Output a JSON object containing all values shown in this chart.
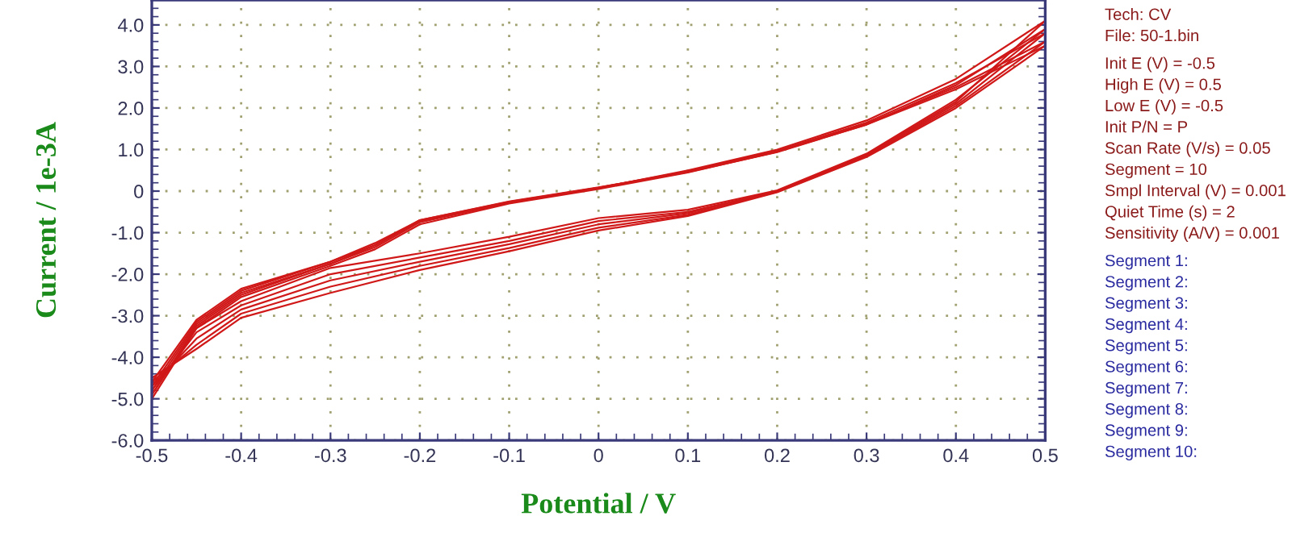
{
  "chart_data": {
    "type": "line",
    "xlabel": "Potential / V",
    "ylabel": "Current / 1e-3A",
    "xlim": [
      -0.5,
      0.5
    ],
    "ylim": [
      -6.0,
      4.6
    ],
    "xticks": [
      -0.5,
      -0.4,
      -0.3,
      -0.2,
      -0.1,
      0,
      0.1,
      0.2,
      0.3,
      0.4,
      0.5
    ],
    "yticks": [
      {
        "value": -6,
        "label": "-6.0"
      },
      {
        "value": -5,
        "label": "-5.0"
      },
      {
        "value": -4,
        "label": "-4.0"
      },
      {
        "value": -3,
        "label": "-3.0"
      },
      {
        "value": -2,
        "label": "-2.0"
      },
      {
        "value": -1,
        "label": "-1.0"
      },
      0,
      {
        "value": 1,
        "label": "1.0"
      },
      {
        "value": 2,
        "label": "2.0"
      },
      {
        "value": 3,
        "label": "3.0"
      },
      {
        "value": 4,
        "label": "4.0"
      }
    ],
    "grid": true,
    "legend": false,
    "marker": "none",
    "line_style": "solid",
    "series": [
      {
        "color": "#d01818",
        "x": [
          -0.5,
          -0.45,
          -0.4,
          -0.3,
          -0.25,
          -0.2,
          -0.1,
          0,
          0.1,
          0.2,
          0.3,
          0.4,
          0.5
        ],
        "values": [
          -5.0,
          -3.3,
          -2.55,
          -1.8,
          -1.4,
          -0.8,
          -0.3,
          0.05,
          0.45,
          0.95,
          1.6,
          2.55,
          3.9
        ]
      },
      {
        "color": "#d01818",
        "x": [
          0.5,
          0.4,
          0.3,
          0.2,
          0.1,
          0,
          -0.1,
          -0.2,
          -0.3,
          -0.4,
          -0.45,
          -0.5
        ],
        "values": [
          3.9,
          2.2,
          0.9,
          0.02,
          -0.45,
          -0.65,
          -1.1,
          -1.5,
          -1.85,
          -2.65,
          -3.3,
          -4.9
        ]
      },
      {
        "color": "#d01818",
        "x": [
          -0.5,
          -0.45,
          -0.4,
          -0.3,
          -0.25,
          -0.2,
          -0.1,
          0,
          0.1,
          0.2,
          0.3,
          0.4,
          0.5
        ],
        "values": [
          -4.9,
          -3.25,
          -2.5,
          -1.75,
          -1.35,
          -0.75,
          -0.28,
          0.07,
          0.5,
          1.0,
          1.7,
          2.7,
          4.1
        ]
      },
      {
        "color": "#d01818",
        "x": [
          0.5,
          0.4,
          0.3,
          0.2,
          0.1,
          0,
          -0.1,
          -0.2,
          -0.3,
          -0.4,
          -0.45,
          -0.5
        ],
        "values": [
          4.1,
          2.15,
          0.88,
          0.0,
          -0.5,
          -0.72,
          -1.2,
          -1.6,
          -2.0,
          -2.75,
          -3.4,
          -4.8
        ]
      },
      {
        "color": "#d01818",
        "x": [
          -0.5,
          -0.45,
          -0.4,
          -0.3,
          -0.25,
          -0.2,
          -0.1,
          0,
          0.1,
          0.2,
          0.3,
          0.4,
          0.5
        ],
        "values": [
          -4.8,
          -3.2,
          -2.45,
          -1.75,
          -1.3,
          -0.72,
          -0.27,
          0.08,
          0.48,
          0.97,
          1.65,
          2.6,
          3.8
        ]
      },
      {
        "color": "#d01818",
        "x": [
          0.5,
          0.4,
          0.3,
          0.2,
          0.1,
          0,
          -0.1,
          -0.2,
          -0.3,
          -0.4,
          -0.45,
          -0.5
        ],
        "values": [
          3.8,
          2.1,
          0.86,
          0.0,
          -0.53,
          -0.8,
          -1.28,
          -1.7,
          -2.15,
          -2.85,
          -3.55,
          -4.7
        ]
      },
      {
        "color": "#d01818",
        "x": [
          -0.5,
          -0.45,
          -0.4,
          -0.3,
          -0.25,
          -0.2,
          -0.1,
          0,
          0.1,
          0.2,
          0.3,
          0.4,
          0.5
        ],
        "values": [
          -4.7,
          -3.15,
          -2.4,
          -1.7,
          -1.3,
          -0.7,
          -0.26,
          0.08,
          0.47,
          0.95,
          1.62,
          2.5,
          3.6
        ]
      },
      {
        "color": "#d01818",
        "x": [
          0.5,
          0.4,
          0.3,
          0.2,
          0.1,
          0,
          -0.1,
          -0.2,
          -0.3,
          -0.4,
          -0.45,
          -0.5
        ],
        "values": [
          3.6,
          2.05,
          0.84,
          -0.02,
          -0.57,
          -0.88,
          -1.37,
          -1.8,
          -2.3,
          -2.95,
          -3.7,
          -4.6
        ]
      },
      {
        "color": "#d01818",
        "x": [
          -0.5,
          -0.45,
          -0.4,
          -0.3,
          -0.25,
          -0.2,
          -0.1,
          0,
          0.1,
          0.2,
          0.3,
          0.4,
          0.5
        ],
        "values": [
          -4.6,
          -3.1,
          -2.35,
          -1.7,
          -1.25,
          -0.7,
          -0.25,
          0.09,
          0.46,
          0.94,
          1.6,
          2.45,
          3.5
        ]
      },
      {
        "color": "#d01818",
        "x": [
          0.5,
          0.4,
          0.3,
          0.2,
          0.1,
          0,
          -0.1,
          -0.2,
          -0.3,
          -0.4,
          -0.45,
          -0.5
        ],
        "values": [
          3.5,
          2.0,
          0.82,
          -0.03,
          -0.6,
          -0.95,
          -1.45,
          -1.9,
          -2.45,
          -3.05,
          -3.8,
          -4.5
        ]
      }
    ],
    "annotations": [
      "Tech: CV",
      "File: 50-1.bin",
      "Init E (V) = -0.5",
      "High E (V) = 0.5",
      "Low E (V) = -0.5",
      "Init P/N = P",
      "Scan Rate (V/s) = 0.05",
      "Segment = 10",
      "Smpl Interval (V) = 0.001",
      "Quiet Time (s) = 2",
      "Sensitivity (A/V) = 0.001",
      "Segment 1:",
      "Segment 2:",
      "Segment 3:",
      "Segment 4:",
      "Segment 5:",
      "Segment 6:",
      "Segment 7:",
      "Segment 8:",
      "Segment 9:",
      "Segment 10:"
    ]
  }
}
